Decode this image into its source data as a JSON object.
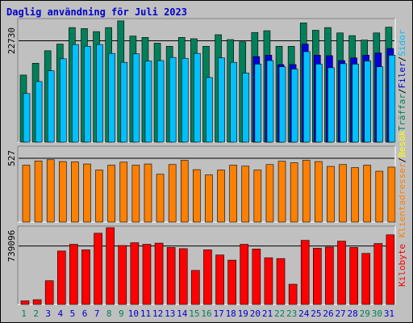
{
  "title": "Daglig användning för Juli 2023",
  "colors": {
    "background": "#c0c0c0",
    "hits": "#00805a",
    "files": "#0080ff",
    "pages": "#00c0ff",
    "visits": "#ffff00",
    "sites": "#ff8000",
    "kbytes": "#ff0000",
    "weekend_label": "#00805a",
    "weekday_label": "#0000cc"
  },
  "chart_data": [
    {
      "type": "bar",
      "title": "Daglig användning för Juli 2023",
      "y_tick_label": "22730",
      "y_tick_value": 22730,
      "right_legend": [
        {
          "text": "Träffar",
          "color": "#00805a"
        },
        {
          "text": "/",
          "color": "#000000"
        },
        {
          "text": "Filer",
          "color": "#0000cc"
        },
        {
          "text": "/",
          "color": "#000000"
        },
        {
          "text": "Sidor",
          "color": "#00c0ff"
        }
      ],
      "categories": [
        "1",
        "2",
        "3",
        "4",
        "5",
        "6",
        "7",
        "8",
        "9",
        "10",
        "11",
        "12",
        "13",
        "14",
        "15",
        "16",
        "17",
        "18",
        "19",
        "20",
        "21",
        "22",
        "23",
        "24",
        "25",
        "26",
        "27",
        "28",
        "29",
        "30",
        "31"
      ],
      "weekend_days": [
        "1",
        "2",
        "8",
        "9",
        "15",
        "16",
        "22",
        "23",
        "29",
        "30"
      ],
      "ylim": [
        0,
        27720
      ],
      "series": [
        {
          "name": "Träffar",
          "values": [
            15050,
            17700,
            20500,
            22000,
            25700,
            25480,
            24800,
            25700,
            27200,
            23800,
            23500,
            22200,
            21500,
            23500,
            23200,
            21500,
            24100,
            23000,
            22500,
            24600,
            25000,
            21500,
            21500,
            26750,
            25100,
            25700,
            24500,
            23900,
            22900,
            24500,
            25800
          ]
        },
        {
          "name": "Filer",
          "values": [
            0,
            0,
            0,
            0,
            0,
            0,
            0,
            0,
            0,
            0,
            0,
            0,
            0,
            0,
            0,
            0,
            0,
            0,
            0,
            19200,
            19500,
            17400,
            17400,
            22000,
            19500,
            19400,
            18300,
            18900,
            19500,
            20000,
            21000
          ]
        },
        {
          "name": "Sidor",
          "values": [
            10900,
            13600,
            16000,
            18700,
            21900,
            21500,
            21900,
            19900,
            17900,
            19800,
            18200,
            18300,
            19000,
            18800,
            19900,
            14500,
            18900,
            17900,
            15500,
            17500,
            18300,
            16900,
            16400,
            20300,
            17500,
            16700,
            17600,
            17500,
            18200,
            16900,
            19500
          ]
        }
      ]
    },
    {
      "type": "bar",
      "y_tick_label": "527",
      "y_tick_value": 527,
      "right_legend": [
        {
          "text": "Klientadresser",
          "color": "#ff8000"
        },
        {
          "text": "/",
          "color": "#000000"
        },
        {
          "text": "Besök",
          "color": "#ffff00"
        }
      ],
      "categories": [
        "1",
        "2",
        "3",
        "4",
        "5",
        "6",
        "7",
        "8",
        "9",
        "10",
        "11",
        "12",
        "13",
        "14",
        "15",
        "16",
        "17",
        "18",
        "19",
        "20",
        "21",
        "22",
        "23",
        "24",
        "25",
        "26",
        "27",
        "28",
        "29",
        "30",
        "31"
      ],
      "ylim": [
        0,
        627
      ],
      "series": [
        {
          "name": "Besök",
          "values": [
            0,
            0,
            0,
            0,
            0,
            0,
            0,
            0,
            0,
            0,
            0,
            0,
            0,
            0,
            0,
            0,
            0,
            0,
            0,
            0,
            0,
            0,
            0,
            0,
            0,
            0,
            0,
            0,
            0,
            0,
            0
          ]
        },
        {
          "name": "Klientadresser",
          "values": [
            470,
            505,
            515,
            500,
            497,
            480,
            430,
            470,
            495,
            470,
            480,
            395,
            475,
            510,
            433,
            390,
            430,
            470,
            462,
            430,
            475,
            502,
            490,
            510,
            500,
            460,
            475,
            450,
            470,
            420,
            454
          ]
        }
      ]
    },
    {
      "type": "bar",
      "y_tick_label": "739096",
      "y_tick_value": 739096,
      "right_legend": [
        {
          "text": "Kilobyte",
          "color": "#ff0000"
        }
      ],
      "categories": [
        "1",
        "2",
        "3",
        "4",
        "5",
        "6",
        "7",
        "8",
        "9",
        "10",
        "11",
        "12",
        "13",
        "14",
        "15",
        "16",
        "17",
        "18",
        "19",
        "20",
        "21",
        "22",
        "23",
        "24",
        "25",
        "26",
        "27",
        "28",
        "29",
        "30",
        "31"
      ],
      "ylim": [
        0,
        990000
      ],
      "series": [
        {
          "name": "Kilobyte",
          "values": [
            45000,
            60000,
            300000,
            675000,
            760000,
            690000,
            900000,
            970000,
            745000,
            780000,
            760000,
            775000,
            720000,
            705000,
            430000,
            690000,
            625000,
            560000,
            760000,
            700000,
            590000,
            580000,
            255000,
            810000,
            710000,
            725000,
            800000,
            720000,
            645000,
            770000,
            880000
          ]
        }
      ]
    }
  ]
}
